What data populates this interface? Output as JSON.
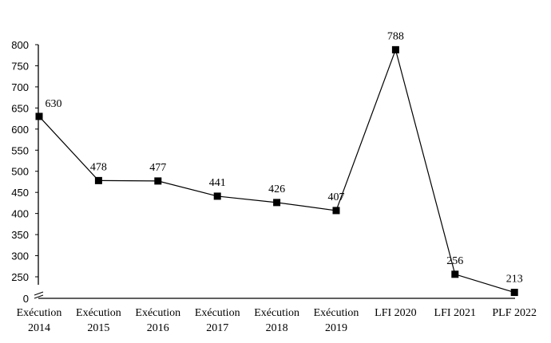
{
  "chart_data": {
    "type": "line",
    "title": "",
    "xlabel": "",
    "ylabel": "",
    "categories": [
      [
        "Exécution",
        "2014"
      ],
      [
        "Exécution",
        "2015"
      ],
      [
        "Exécution",
        "2016"
      ],
      [
        "Exécution",
        "2017"
      ],
      [
        "Exécution",
        "2018"
      ],
      [
        "Exécution",
        "2019"
      ],
      [
        "LFI 2020"
      ],
      [
        "LFI 2021"
      ],
      [
        "PLF 2022"
      ]
    ],
    "series": [
      {
        "name": "",
        "values": [
          630,
          478,
          477,
          441,
          426,
          407,
          788,
          256,
          213
        ]
      }
    ],
    "data_labels": [
      "630",
      "478",
      "477",
      "441",
      "426",
      "407",
      "788",
      "256",
      "213"
    ],
    "ylim": [
      0,
      800
    ],
    "axis_break": [
      0,
      250
    ],
    "yticks": [
      0,
      250,
      300,
      350,
      400,
      450,
      500,
      550,
      600,
      650,
      700,
      750,
      800
    ],
    "ytick_labels": [
      "0",
      "250",
      "300",
      "350",
      "400",
      "450",
      "500",
      "550",
      "600",
      "650",
      "700",
      "750",
      "800"
    ],
    "grid": false,
    "legend": "none",
    "marker": "square",
    "line_color": "#000000"
  }
}
